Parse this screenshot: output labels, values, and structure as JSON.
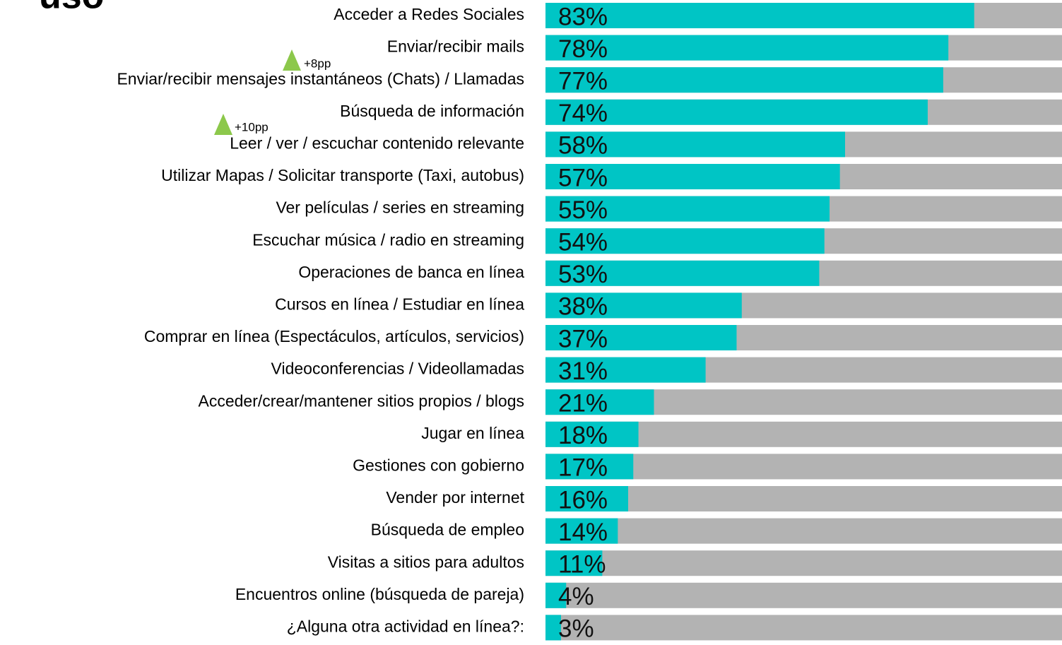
{
  "chart_data": {
    "type": "hbar",
    "title": "uso",
    "categories": [
      "Acceder a Redes Sociales",
      "Enviar/recibir mails",
      "Enviar/recibir mensajes instantáneos (Chats) / Llamadas",
      "Búsqueda de información",
      "Leer / ver / escuchar contenido relevante",
      "Utilizar Mapas / Solicitar transporte (Taxi, autobus)",
      "Ver películas / series en streaming",
      "Escuchar música / radio en streaming",
      "Operaciones de banca en línea",
      "Cursos en línea / Estudiar en línea",
      "Comprar en línea (Espectáculos, artículos, servicios)",
      "Videoconferencias / Videollamadas",
      "Acceder/crear/mantener sitios propios / blogs",
      "Jugar en línea",
      "Gestiones con gobierno",
      "Vender por internet",
      "Búsqueda de empleo",
      "Visitas a sitios para adultos",
      "Encuentros online (búsqueda de pareja)",
      "¿Alguna otra actividad en línea?:"
    ],
    "values": [
      83,
      78,
      77,
      74,
      58,
      57,
      55,
      54,
      53,
      38,
      37,
      31,
      21,
      18,
      17,
      16,
      14,
      11,
      4,
      3
    ],
    "value_labels": [
      "83%",
      "78%",
      "77%",
      "74%",
      "58%",
      "57%",
      "55%",
      "54%",
      "53%",
      "38%",
      "37%",
      "31%",
      "21%",
      "18%",
      "17%",
      "16%",
      "14%",
      "11%",
      "4%",
      "3%"
    ],
    "color": "#00c5c5",
    "track_color": "#b3b3b3",
    "xlim": [
      0,
      100
    ],
    "annotations": [
      "+8pp",
      "+10pp"
    ],
    "annotation_color": "#8cc84b"
  }
}
